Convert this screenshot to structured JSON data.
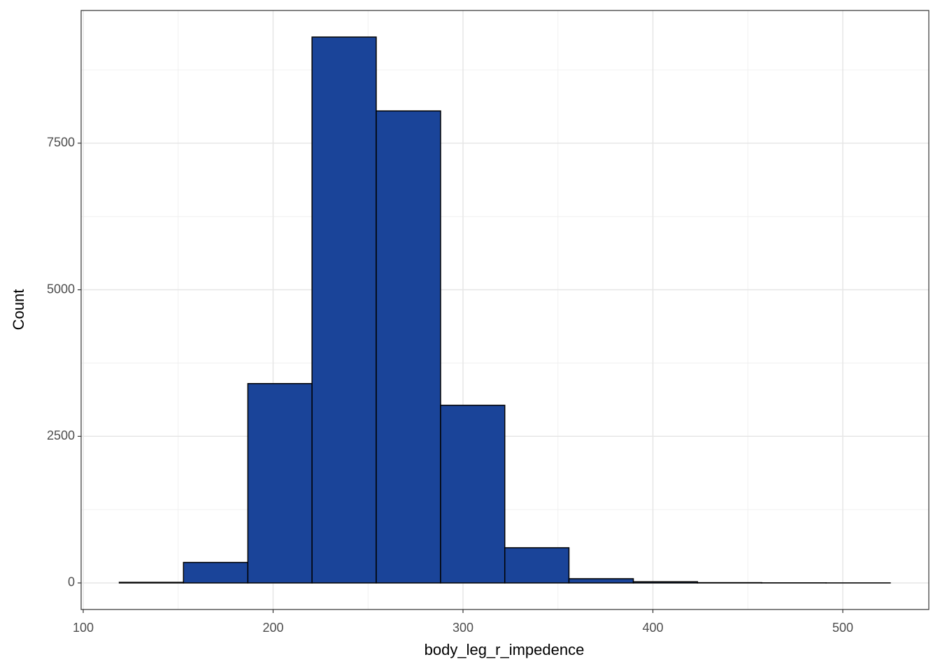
{
  "chart_data": {
    "type": "histogram",
    "x_label": "body_leg_r_impedence",
    "y_label": "Count",
    "bins": [
      119,
      152.8,
      186.7,
      220.5,
      254.3,
      288.2,
      322,
      355.8,
      389.7,
      423.5,
      457.3,
      491.2,
      525
    ],
    "values": [
      10,
      350,
      3400,
      9310,
      8050,
      3030,
      600,
      72,
      20,
      5,
      2,
      1
    ],
    "color": "#1a4499",
    "edgecolor": "#000000",
    "xlim": [
      98.9,
      545.3
    ],
    "ylim": [
      -453,
      9763
    ],
    "xticks": [
      100,
      200,
      300,
      400,
      500
    ],
    "yticks": [
      0,
      2500,
      5000,
      7500
    ],
    "minor_xticks": [
      150,
      250,
      350,
      450
    ],
    "minor_yticks": [
      1250,
      3750,
      6250,
      8750
    ],
    "grid": true
  }
}
